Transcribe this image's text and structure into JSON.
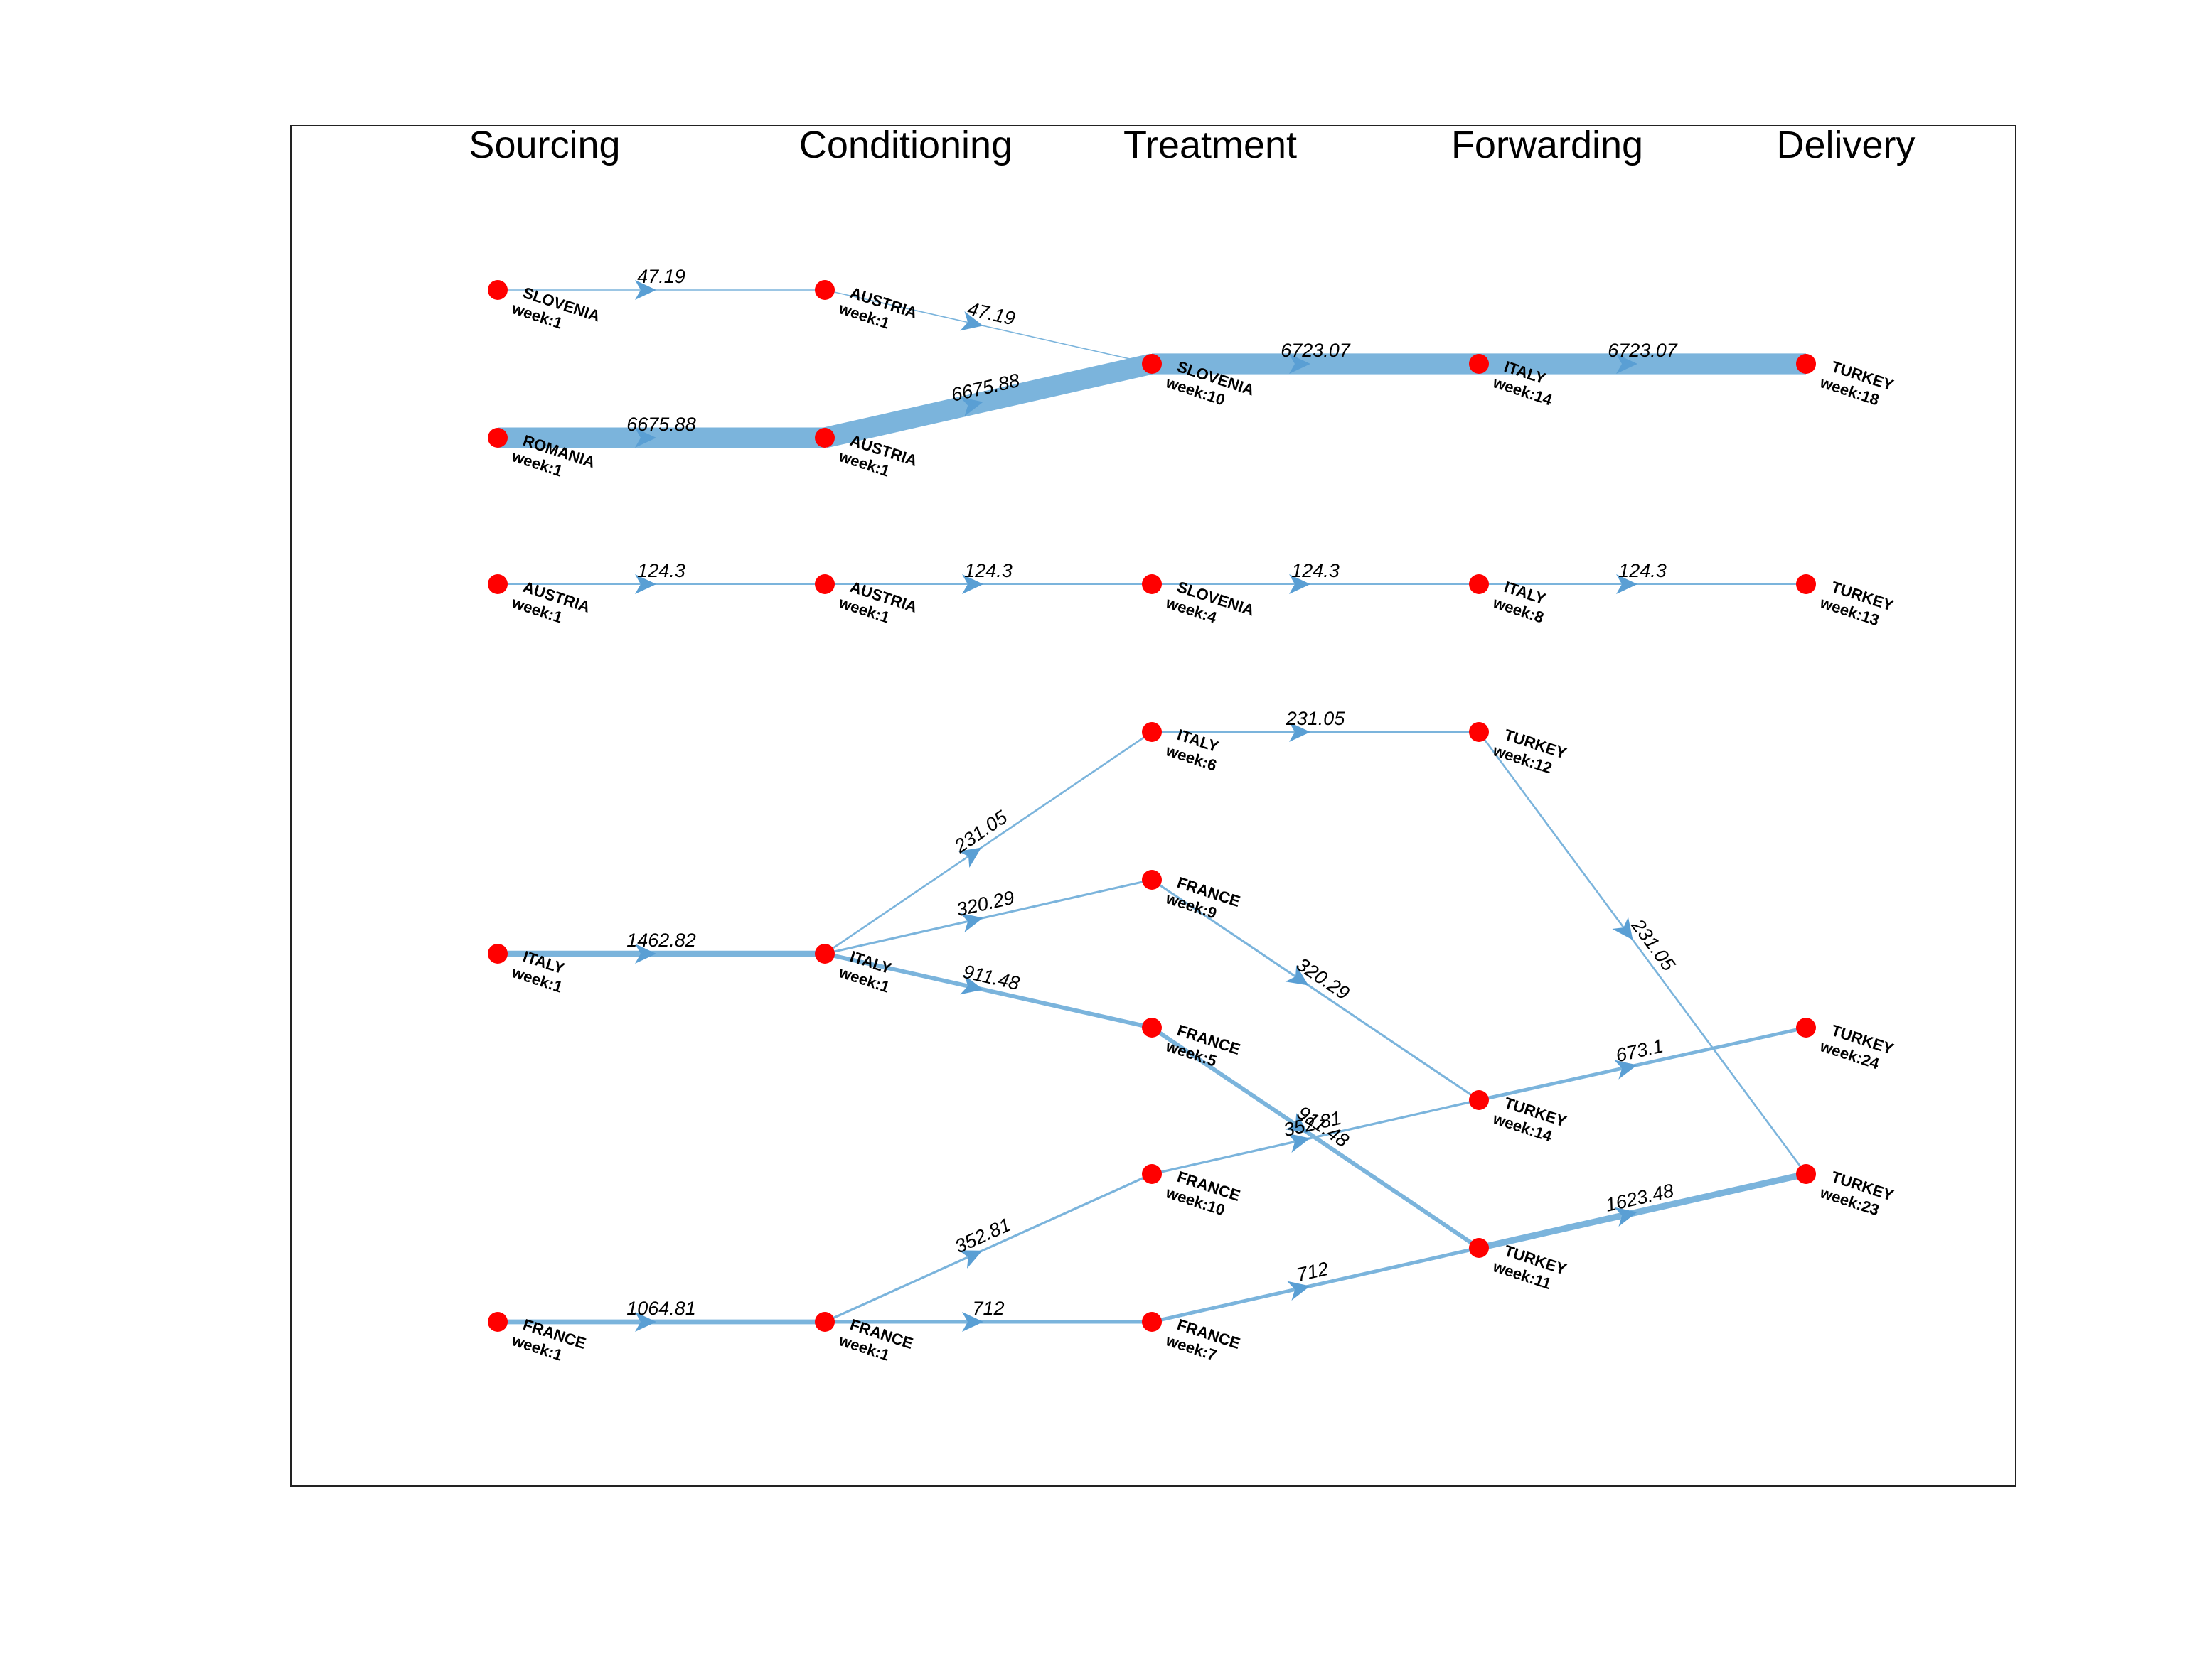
{
  "colors": {
    "edge": "#7bb4dc",
    "arrow": "#5a9fd4",
    "node": "#ff0000",
    "frame": "#222222"
  },
  "stages": [
    "Sourcing",
    "Conditioning",
    "Treatment",
    "Forwarding",
    "Delivery"
  ],
  "nodes": [
    {
      "id": "s1",
      "stage": 0,
      "country": "SLOVENIA",
      "week": "week:1"
    },
    {
      "id": "s2",
      "stage": 0,
      "country": "ROMANIA",
      "week": "week:1"
    },
    {
      "id": "s3",
      "stage": 0,
      "country": "AUSTRIA",
      "week": "week:1"
    },
    {
      "id": "s4",
      "stage": 0,
      "country": "ITALY",
      "week": "week:1"
    },
    {
      "id": "s5",
      "stage": 0,
      "country": "FRANCE",
      "week": "week:1"
    },
    {
      "id": "c1",
      "stage": 1,
      "country": "AUSTRIA",
      "week": "week:1"
    },
    {
      "id": "c2",
      "stage": 1,
      "country": "AUSTRIA",
      "week": "week:1"
    },
    {
      "id": "c3",
      "stage": 1,
      "country": "AUSTRIA",
      "week": "week:1"
    },
    {
      "id": "c4",
      "stage": 1,
      "country": "ITALY",
      "week": "week:1"
    },
    {
      "id": "c5",
      "stage": 1,
      "country": "FRANCE",
      "week": "week:1"
    },
    {
      "id": "t1",
      "stage": 2,
      "country": "SLOVENIA",
      "week": "week:10"
    },
    {
      "id": "t2",
      "stage": 2,
      "country": "SLOVENIA",
      "week": "week:4"
    },
    {
      "id": "t3",
      "stage": 2,
      "country": "ITALY",
      "week": "week:6"
    },
    {
      "id": "t4",
      "stage": 2,
      "country": "FRANCE",
      "week": "week:9"
    },
    {
      "id": "t5",
      "stage": 2,
      "country": "FRANCE",
      "week": "week:5"
    },
    {
      "id": "t6",
      "stage": 2,
      "country": "FRANCE",
      "week": "week:10"
    },
    {
      "id": "t7",
      "stage": 2,
      "country": "FRANCE",
      "week": "week:7"
    },
    {
      "id": "f1",
      "stage": 3,
      "country": "ITALY",
      "week": "week:14"
    },
    {
      "id": "f2",
      "stage": 3,
      "country": "ITALY",
      "week": "week:8"
    },
    {
      "id": "f3",
      "stage": 3,
      "country": "TURKEY",
      "week": "week:12"
    },
    {
      "id": "f4",
      "stage": 3,
      "country": "TURKEY",
      "week": "week:14"
    },
    {
      "id": "f5",
      "stage": 3,
      "country": "TURKEY",
      "week": "week:11"
    },
    {
      "id": "d1",
      "stage": 4,
      "country": "TURKEY",
      "week": "week:18"
    },
    {
      "id": "d2",
      "stage": 4,
      "country": "TURKEY",
      "week": "week:13"
    },
    {
      "id": "d3",
      "stage": 4,
      "country": "TURKEY",
      "week": "week:24"
    },
    {
      "id": "d4",
      "stage": 4,
      "country": "TURKEY",
      "week": "week:23"
    }
  ],
  "flows": [
    {
      "from": "s1",
      "to": "c1",
      "value": 47.19,
      "label": "47.19"
    },
    {
      "from": "c1",
      "to": "t1",
      "value": 47.19,
      "label": "47.19"
    },
    {
      "from": "s2",
      "to": "c2",
      "value": 6675.88,
      "label": "6675.88"
    },
    {
      "from": "c2",
      "to": "t1",
      "value": 6675.88,
      "label": "6675.88"
    },
    {
      "from": "t1",
      "to": "f1",
      "value": 6723.07,
      "label": "6723.07"
    },
    {
      "from": "f1",
      "to": "d1",
      "value": 6723.07,
      "label": "6723.07"
    },
    {
      "from": "s3",
      "to": "c3",
      "value": 124.3,
      "label": "124.3"
    },
    {
      "from": "c3",
      "to": "t2",
      "value": 124.3,
      "label": "124.3"
    },
    {
      "from": "t2",
      "to": "f2",
      "value": 124.3,
      "label": "124.3"
    },
    {
      "from": "f2",
      "to": "d2",
      "value": 124.3,
      "label": "124.3"
    },
    {
      "from": "s4",
      "to": "c4",
      "value": 1462.82,
      "label": "1462.82"
    },
    {
      "from": "c4",
      "to": "t3",
      "value": 231.05,
      "label": "231.05"
    },
    {
      "from": "c4",
      "to": "t4",
      "value": 320.29,
      "label": "320.29"
    },
    {
      "from": "c4",
      "to": "t5",
      "value": 911.48,
      "label": "911.48"
    },
    {
      "from": "t3",
      "to": "f3",
      "value": 231.05,
      "label": "231.05"
    },
    {
      "from": "f3",
      "to": "d4",
      "value": 231.05,
      "label": "231.05"
    },
    {
      "from": "t4",
      "to": "f4",
      "value": 320.29,
      "label": "320.29"
    },
    {
      "from": "t5",
      "to": "f5",
      "value": 911.48,
      "label": "911.48"
    },
    {
      "from": "s5",
      "to": "c5",
      "value": 1064.81,
      "label": "1064.81"
    },
    {
      "from": "c5",
      "to": "t6",
      "value": 352.81,
      "label": "352.81"
    },
    {
      "from": "c5",
      "to": "t7",
      "value": 712,
      "label": "712"
    },
    {
      "from": "t6",
      "to": "f4",
      "value": 352.81,
      "label": "352.81"
    },
    {
      "from": "t7",
      "to": "f5",
      "value": 712,
      "label": "712"
    },
    {
      "from": "f4",
      "to": "d3",
      "value": 673.1,
      "label": "673.1"
    },
    {
      "from": "f5",
      "to": "d4",
      "value": 1623.48,
      "label": "1623.48"
    }
  ]
}
